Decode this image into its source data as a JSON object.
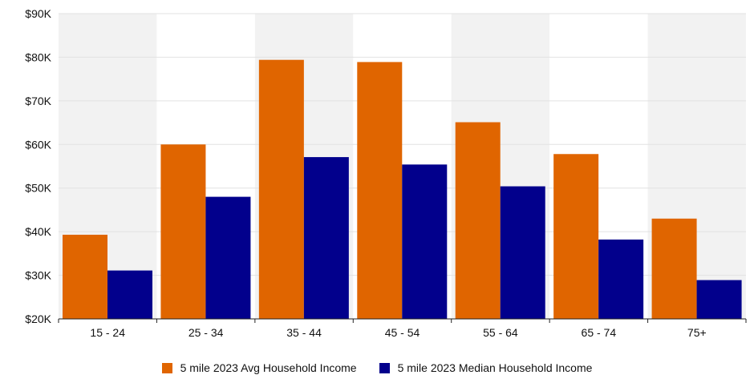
{
  "chart_data": {
    "type": "bar",
    "title": "",
    "xlabel": "",
    "ylabel": "",
    "categories": [
      "15 - 24",
      "25 - 34",
      "35 - 44",
      "45 - 54",
      "55 - 64",
      "65 - 74",
      "75+"
    ],
    "series": [
      {
        "name": "5 mile 2023 Avg Household Income",
        "color": "#E06500",
        "values": [
          39300,
          60000,
          79400,
          78900,
          65100,
          57800,
          43000
        ]
      },
      {
        "name": "5 mile 2023 Median Household Income",
        "color": "#02008C",
        "values": [
          31100,
          48000,
          57100,
          55400,
          50400,
          38200,
          28900
        ]
      }
    ],
    "ylim": [
      20000,
      90000
    ],
    "yticks": [
      20000,
      30000,
      40000,
      50000,
      60000,
      70000,
      80000,
      90000
    ],
    "ytick_labels": [
      "$20K",
      "$30K",
      "$40K",
      "$50K",
      "$60K",
      "$70K",
      "$80K",
      "$90K"
    ],
    "grid": true,
    "band_colors": [
      "#F2F2F2",
      "#FFFFFF"
    ],
    "legend_position": "bottom"
  }
}
